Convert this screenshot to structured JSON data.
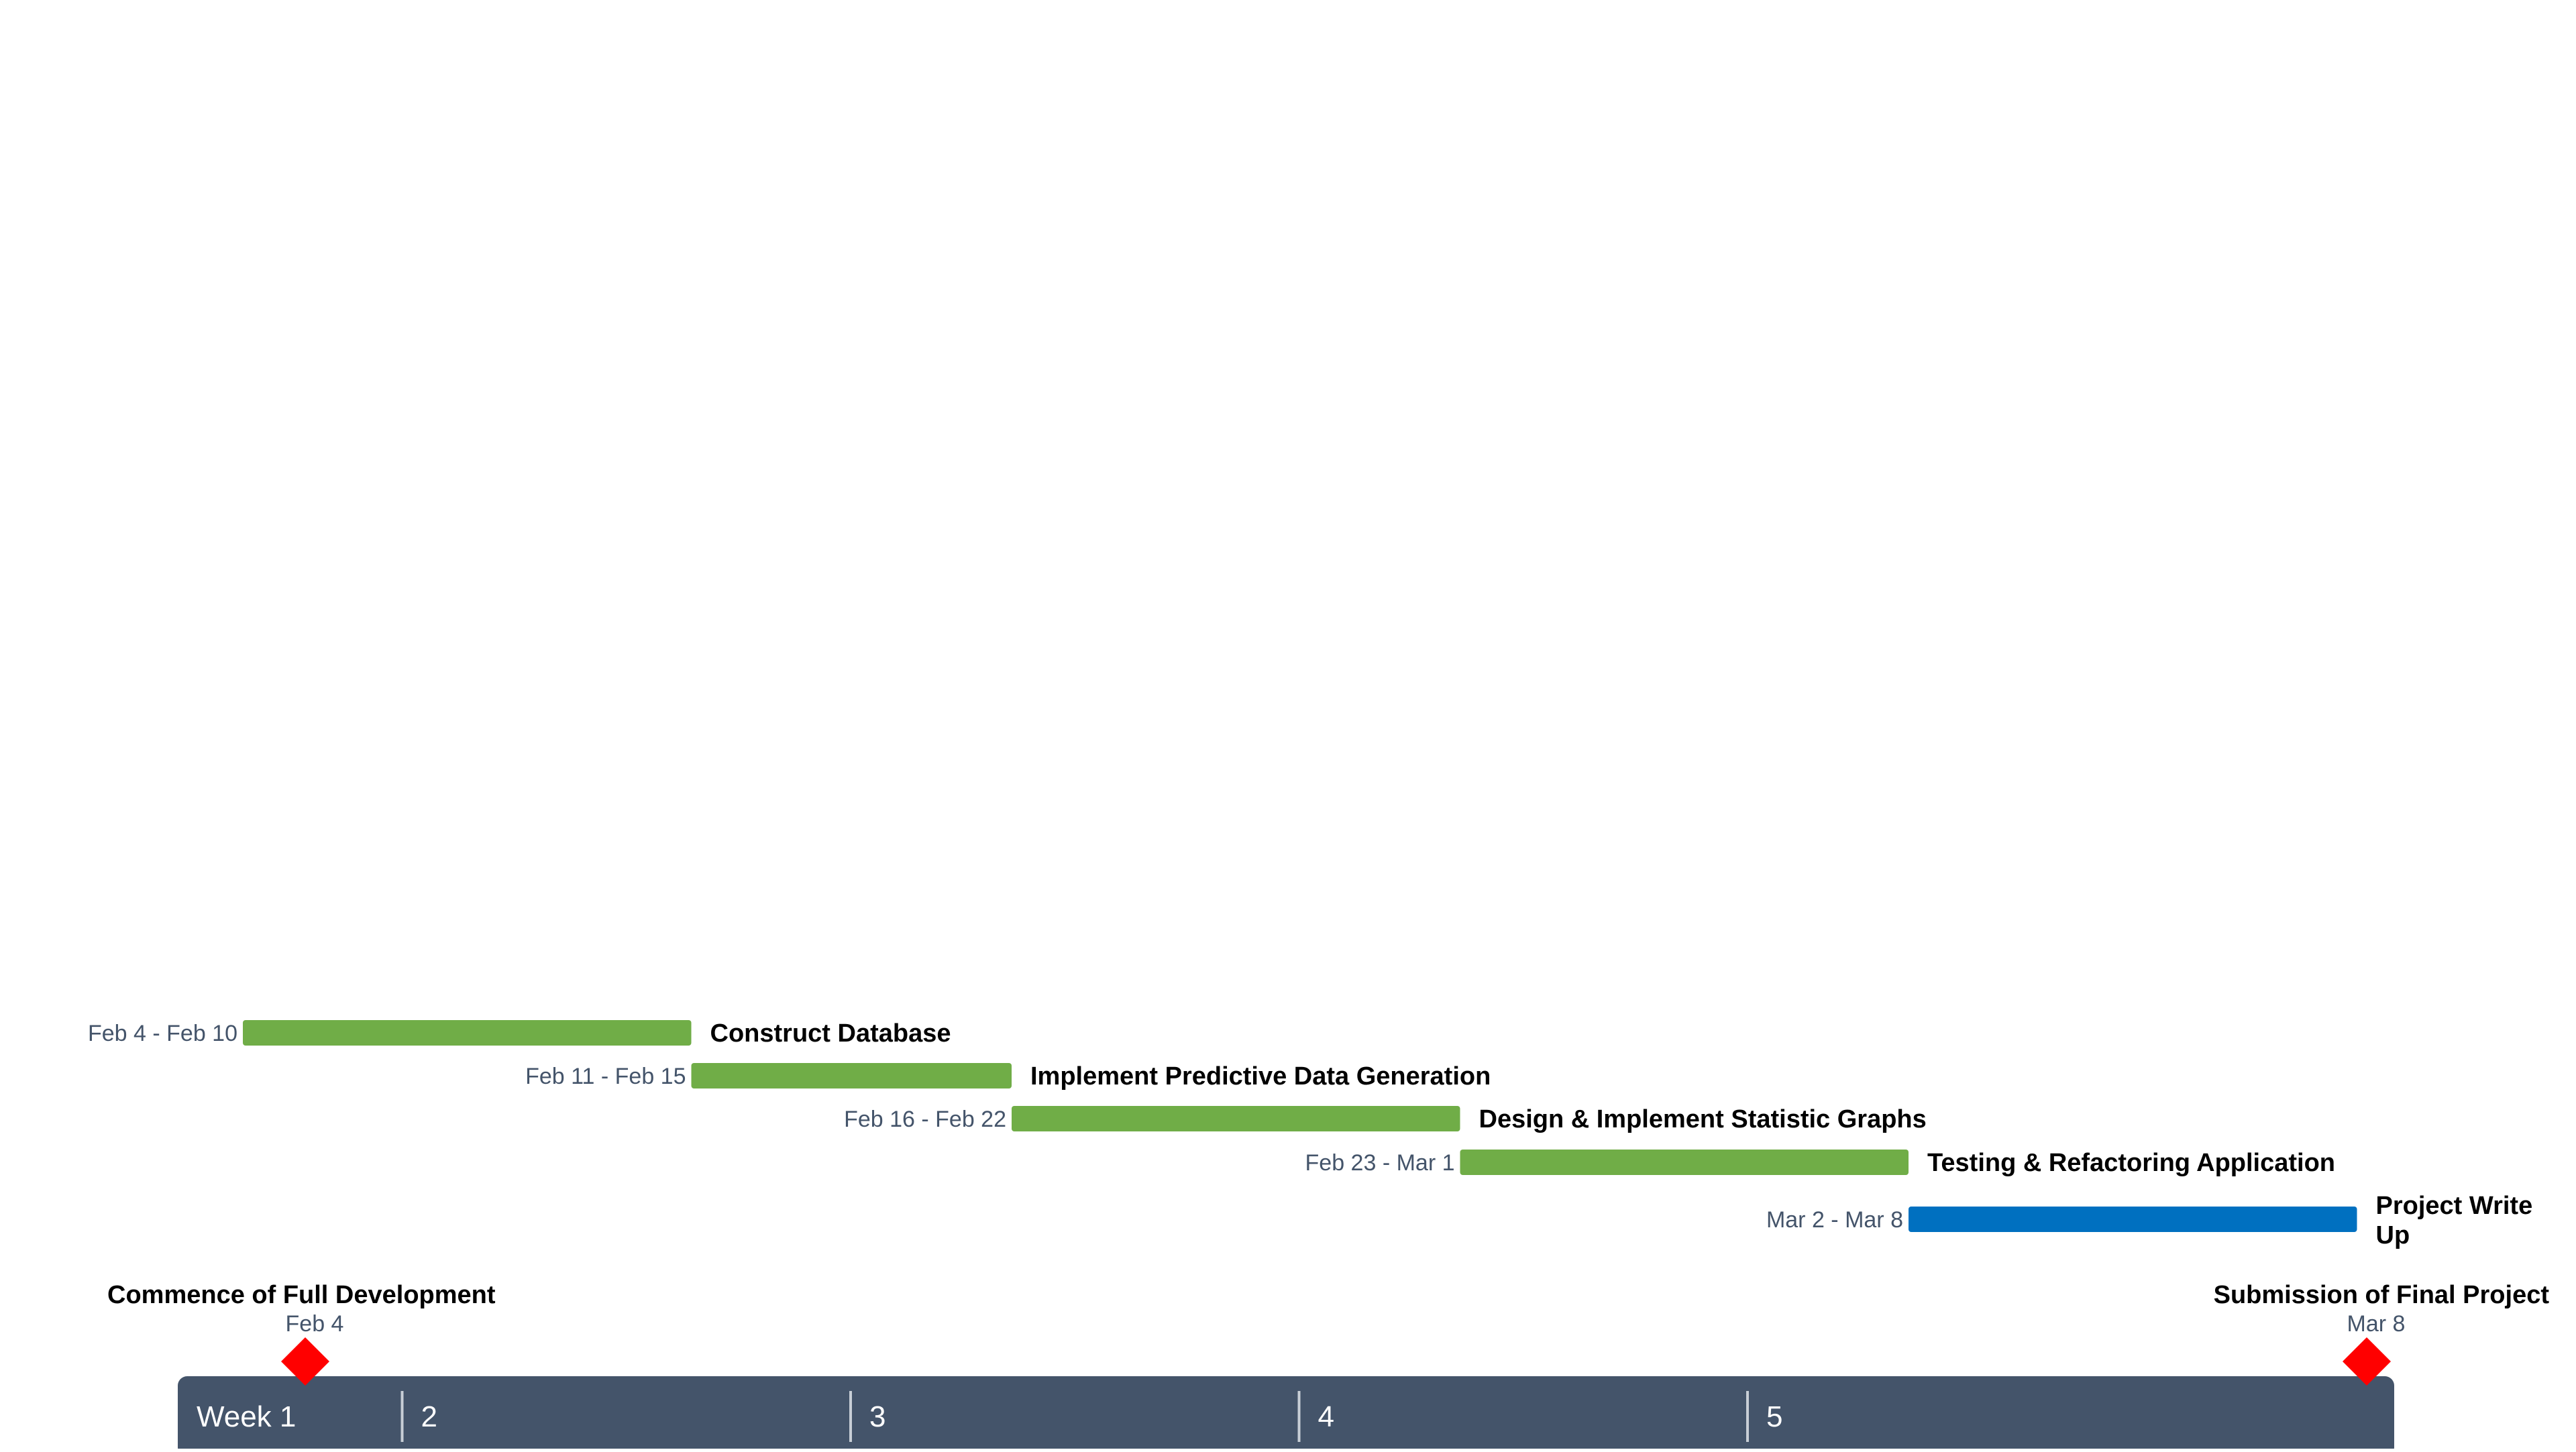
{
  "chart_data": {
    "type": "gantt",
    "title": "",
    "colors": {
      "timescale_band": "#44546a",
      "timescale_text": "#ffffff",
      "timescale_divider": "#c8ced6",
      "date_text": "#44546a",
      "milestone": "#ff0000"
    },
    "timescale": {
      "start": "Feb 4",
      "end": "Mar 10",
      "weeks": [
        {
          "label": "Week 1",
          "start": "Feb 4"
        },
        {
          "label": "2",
          "start": "Feb 11"
        },
        {
          "label": "3",
          "start": "Feb 18"
        },
        {
          "label": "4",
          "start": "Feb 25"
        },
        {
          "label": "5",
          "start": "Mar 4"
        }
      ]
    },
    "tasks": [
      {
        "name": "Construct Database",
        "dates": "Feb 4 - Feb 10",
        "start": "Feb 4",
        "end": "Feb 10",
        "color": "#70ad47"
      },
      {
        "name": "Implement Predictive Data Generation",
        "dates": "Feb 11 - Feb 15",
        "start": "Feb 11",
        "end": "Feb 15",
        "color": "#70ad47"
      },
      {
        "name": "Design & Implement Statistic Graphs",
        "dates": "Feb 16 - Feb 22",
        "start": "Feb 16",
        "end": "Feb 22",
        "color": "#70ad47"
      },
      {
        "name": "Testing & Refactoring Application",
        "dates": "Feb 23 - Mar 1",
        "start": "Feb 23",
        "end": "Mar 1",
        "color": "#70ad47"
      },
      {
        "name": "Project Write Up",
        "dates": "Mar 2 - Mar 8",
        "start": "Mar 2",
        "end": "Mar 8",
        "color": "#0070c0"
      }
    ],
    "milestones": [
      {
        "name": "Commence of Full Development",
        "date": "Feb 4"
      },
      {
        "name": "Submission of Final Project",
        "date": "Mar 8"
      }
    ]
  }
}
